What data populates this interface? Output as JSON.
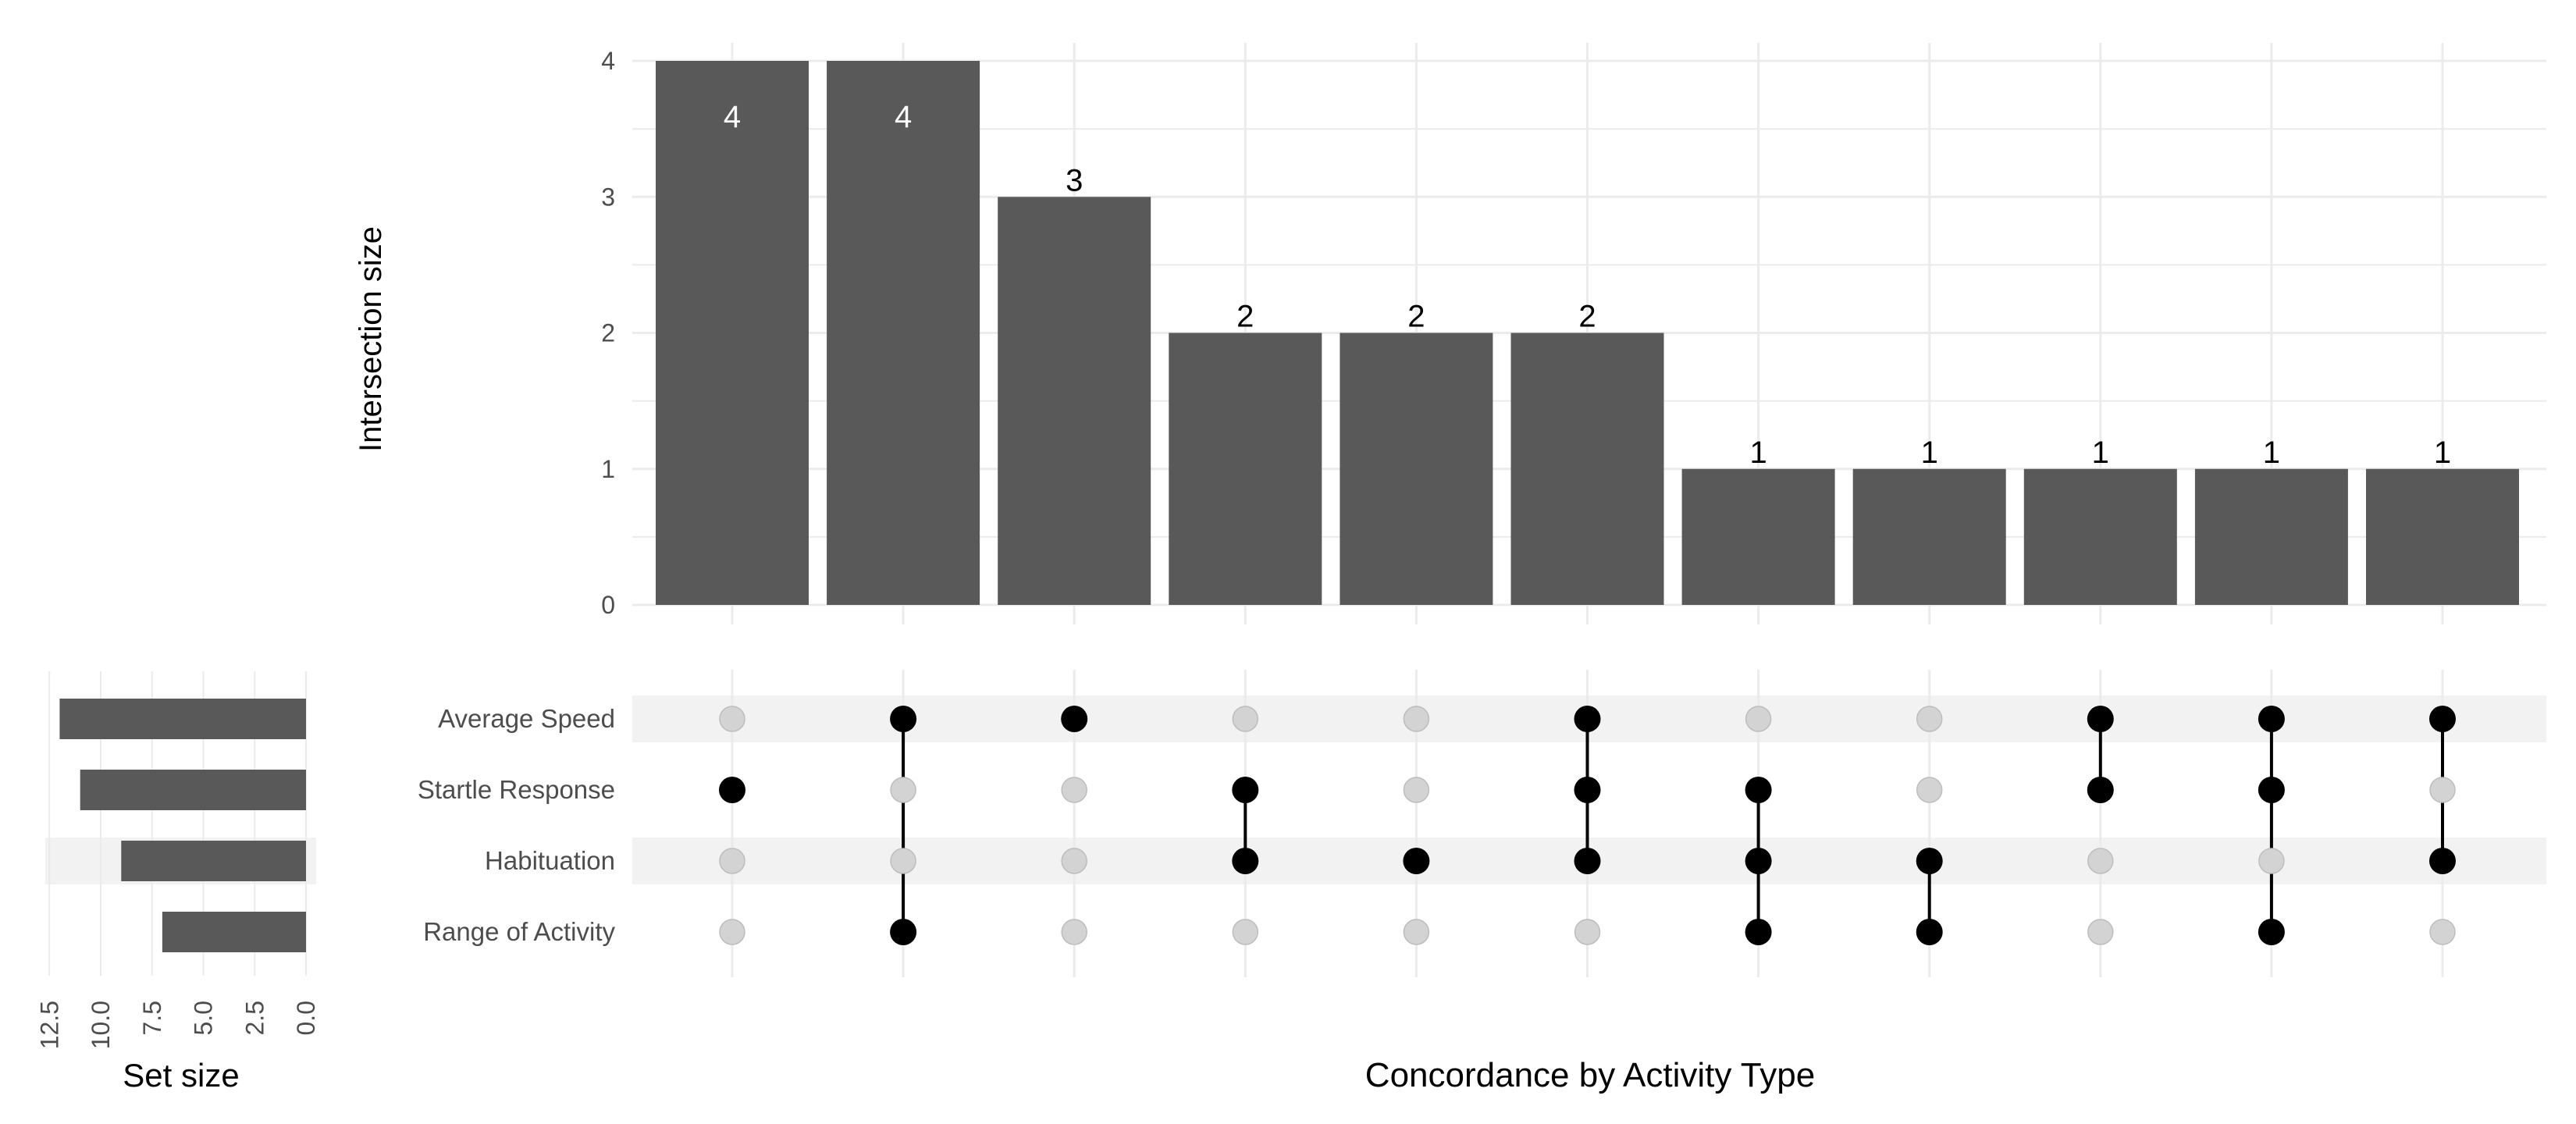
{
  "chart_data": {
    "type": "bar",
    "subtype": "upset",
    "colors": {
      "bar": "#595959",
      "dot_active": "#000000",
      "dot_inactive": "#d3d3d3",
      "band": "#f2f2f2",
      "grid": "#ebebeb"
    },
    "top": {
      "ylabel": "Intersection size",
      "ylim": [
        0,
        4
      ],
      "yticks": [
        "0",
        "1",
        "2",
        "3",
        "4"
      ],
      "values": [
        4,
        4,
        3,
        2,
        2,
        2,
        1,
        1,
        1,
        1,
        1
      ],
      "labels": [
        "4",
        "4",
        "3",
        "2",
        "2",
        "2",
        "1",
        "1",
        "1",
        "1",
        "1"
      ]
    },
    "sets": [
      "Average Speed",
      "Startle Response",
      "Habituation",
      "Range of Activity"
    ],
    "intersections": [
      [
        "Startle Response"
      ],
      [
        "Average Speed",
        "Range of Activity"
      ],
      [
        "Average Speed"
      ],
      [
        "Startle Response",
        "Habituation"
      ],
      [
        "Habituation"
      ],
      [
        "Average Speed",
        "Startle Response",
        "Habituation"
      ],
      [
        "Startle Response",
        "Habituation",
        "Range of Activity"
      ],
      [
        "Habituation",
        "Range of Activity"
      ],
      [
        "Average Speed",
        "Startle Response"
      ],
      [
        "Average Speed",
        "Startle Response",
        "Range of Activity"
      ],
      [
        "Average Speed",
        "Habituation"
      ]
    ],
    "set_size": {
      "xlabel": "Set size",
      "values": [
        12,
        11,
        9,
        7
      ],
      "ticks": [
        "12.5",
        "10.0",
        "7.5",
        "5.0",
        "2.5",
        "0.0"
      ],
      "tick_values": [
        12.5,
        10.0,
        7.5,
        5.0,
        2.5,
        0.0
      ],
      "xlim": [
        13,
        0
      ]
    },
    "xlabel": "Concordance by Activity Type"
  }
}
